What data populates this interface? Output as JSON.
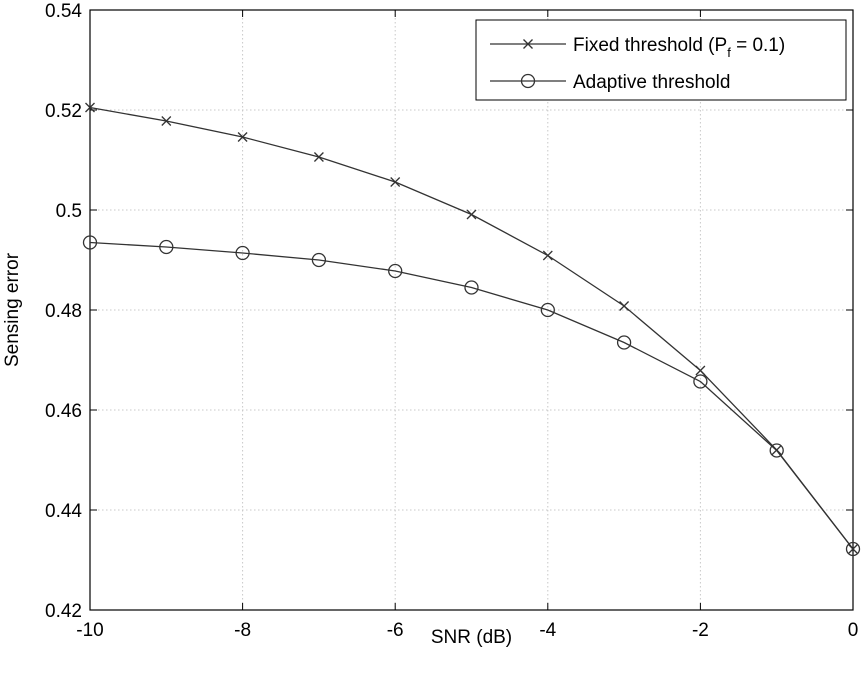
{
  "chart_data": {
    "type": "line",
    "xlabel": "SNR (dB)",
    "ylabel": "Sensing error",
    "xlim": [
      -10,
      0
    ],
    "ylim": [
      0.42,
      0.54
    ],
    "x_ticks": [
      -10,
      -8,
      -6,
      -4,
      -2,
      0
    ],
    "y_ticks": [
      0.42,
      0.44,
      0.46,
      0.48,
      0.5,
      0.52,
      0.54
    ],
    "x_tick_labels": [
      "-10",
      "-8",
      "-6",
      "-4",
      "-2",
      "0"
    ],
    "y_tick_labels": [
      "0.42",
      "0.44",
      "0.46",
      "0.48",
      "0.5",
      "0.52",
      "0.54"
    ],
    "grid": true,
    "legend_position": "top-right",
    "x": [
      -10,
      -9,
      -8,
      -7,
      -6,
      -5,
      -4,
      -3,
      -2,
      -1,
      0
    ],
    "series": [
      {
        "name": "Fixed threshold (P",
        "name_subscript": "f",
        "name_suffix": " = 0.1)",
        "marker": "x",
        "color": "#333333",
        "values": [
          0.5205,
          0.5178,
          0.5146,
          0.5106,
          0.5056,
          0.4991,
          0.4909,
          0.4808,
          0.4679,
          0.452,
          0.4322
        ]
      },
      {
        "name": "Adaptive threshold",
        "marker": "o",
        "color": "#333333",
        "values": [
          0.4935,
          0.4926,
          0.4914,
          0.49,
          0.4878,
          0.4845,
          0.48,
          0.4735,
          0.4657,
          0.4519,
          0.4322
        ]
      }
    ]
  }
}
